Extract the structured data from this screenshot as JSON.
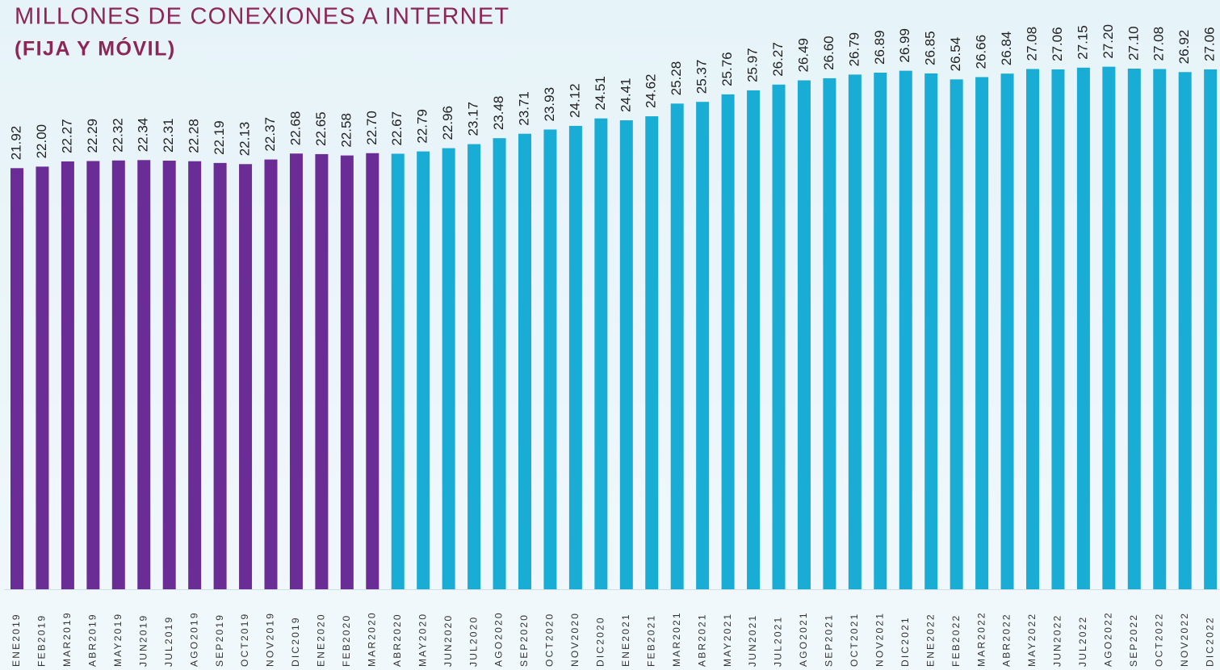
{
  "chart_data": {
    "type": "bar",
    "title": "MILLONES DE CONEXIONES A INTERNET",
    "subtitle": "(FIJA Y MÓVIL)",
    "categories": [
      "ENE2019",
      "FEB2019",
      "MAR2019",
      "ABR2019",
      "MAY2019",
      "JUN2019",
      "JUL2019",
      "AGO2019",
      "SEP2019",
      "OCT2019",
      "NOV2019",
      "DIC2019",
      "ENE2020",
      "FEB2020",
      "MAR2020",
      "ABR2020",
      "MAY2020",
      "JUN2020",
      "JUL2020",
      "AGO2020",
      "SEP2020",
      "OCT2020",
      "NOV2020",
      "DIC2020",
      "ENE2021",
      "FEB2021",
      "MAR2021",
      "ABR2021",
      "MAY2021",
      "JUN2021",
      "JUL2021",
      "AGO2021",
      "SEP2021",
      "OCT2021",
      "NOV2021",
      "DIC2021",
      "ENE2022",
      "FEB2022",
      "MAR2022",
      "ABR2022",
      "MAY2022",
      "JUN2022",
      "JUL2022",
      "AGO2022",
      "SEP2022",
      "OCT2022",
      "NOV2022",
      "DIC2022"
    ],
    "values": [
      21.92,
      22.0,
      22.27,
      22.29,
      22.32,
      22.34,
      22.31,
      22.28,
      22.19,
      22.13,
      22.37,
      22.68,
      22.65,
      22.58,
      22.7,
      22.67,
      22.79,
      22.96,
      23.17,
      23.48,
      23.71,
      23.93,
      24.12,
      24.51,
      24.41,
      24.62,
      25.28,
      25.37,
      25.76,
      25.97,
      26.27,
      26.49,
      26.6,
      26.79,
      26.89,
      26.99,
      26.85,
      26.54,
      26.66,
      26.84,
      27.08,
      27.06,
      27.15,
      27.2,
      27.1,
      27.08,
      26.92,
      27.06
    ],
    "value_labels": [
      "21.92",
      "22.00",
      "22.27",
      "22.29",
      "22.32",
      "22.34",
      "22.31",
      "22.28",
      "22.19",
      "22.13",
      "22.37",
      "22.68",
      "22.65",
      "22.58",
      "22.70",
      "22.67",
      "22.79",
      "22.96",
      "23.17",
      "23.48",
      "23.71",
      "23.93",
      "24.12",
      "24.51",
      "24.41",
      "24.62",
      "25.28",
      "25.37",
      "25.76",
      "25.97",
      "26.27",
      "26.49",
      "26.60",
      "26.79",
      "26.89",
      "26.99",
      "26.85",
      "26.54",
      "26.66",
      "26.84",
      "27.08",
      "27.06",
      "27.15",
      "27.20",
      "27.10",
      "27.08",
      "26.92",
      "27.06"
    ],
    "colors": [
      "#6a2c95",
      "#6a2c95",
      "#6a2c95",
      "#6a2c95",
      "#6a2c95",
      "#6a2c95",
      "#6a2c95",
      "#6a2c95",
      "#6a2c95",
      "#6a2c95",
      "#6a2c95",
      "#6a2c95",
      "#6a2c95",
      "#6a2c95",
      "#6a2c95",
      "#19acd5",
      "#19acd5",
      "#19acd5",
      "#19acd5",
      "#19acd5",
      "#19acd5",
      "#19acd5",
      "#19acd5",
      "#19acd5",
      "#19acd5",
      "#19acd5",
      "#19acd5",
      "#19acd5",
      "#19acd5",
      "#19acd5",
      "#19acd5",
      "#19acd5",
      "#19acd5",
      "#19acd5",
      "#19acd5",
      "#19acd5",
      "#19acd5",
      "#19acd5",
      "#19acd5",
      "#19acd5",
      "#19acd5",
      "#19acd5",
      "#19acd5",
      "#19acd5",
      "#19acd5",
      "#19acd5",
      "#19acd5",
      "#19acd5"
    ]
  }
}
